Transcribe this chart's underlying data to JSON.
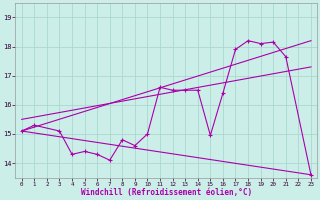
{
  "xlabel": "Windchill (Refroidissement éolien,°C)",
  "bg_color": "#cceee8",
  "line_color": "#aa00aa",
  "grid_color": "#aad8d0",
  "zigzag_x": [
    0,
    1,
    3,
    4,
    5,
    6,
    7,
    8,
    9,
    10,
    11,
    12,
    13,
    14,
    15,
    16,
    17,
    18,
    19,
    20,
    21,
    23
  ],
  "zigzag_y": [
    15.1,
    15.3,
    15.1,
    14.3,
    14.4,
    14.3,
    14.1,
    14.8,
    14.6,
    15.0,
    16.6,
    16.5,
    16.5,
    16.5,
    14.95,
    16.4,
    17.9,
    18.2,
    18.1,
    18.15,
    17.65,
    13.6
  ],
  "upper_line_x": [
    0,
    23
  ],
  "upper_line_y": [
    15.1,
    18.2
  ],
  "lower_line_x": [
    0,
    23
  ],
  "lower_line_y": [
    15.1,
    13.6
  ],
  "extra_line_x": [
    0,
    23
  ],
  "extra_line_y": [
    15.5,
    17.3
  ],
  "ylim": [
    13.5,
    19.5
  ],
  "xlim": [
    -0.5,
    23.5
  ],
  "yticks": [
    14,
    15,
    16,
    17,
    18,
    19
  ],
  "xticks": [
    0,
    1,
    2,
    3,
    4,
    5,
    6,
    7,
    8,
    9,
    10,
    11,
    12,
    13,
    14,
    15,
    16,
    17,
    18,
    19,
    20,
    21,
    22,
    23
  ]
}
